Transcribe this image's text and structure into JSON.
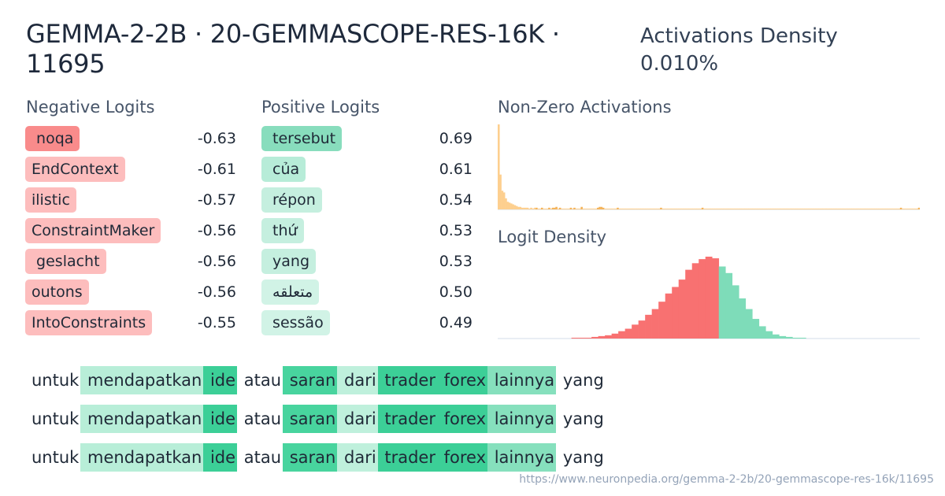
{
  "header": {
    "title": "GEMMA-2-2B · 20-GEMMASCOPE-RES-16K · 11695",
    "density_label": "Activations Density",
    "density_value": "0.010%"
  },
  "negative_logits": {
    "heading": "Negative Logits",
    "items": [
      {
        "token": " noqa",
        "value": "-0.63",
        "color": "#f98b8b"
      },
      {
        "token": "EndContext",
        "value": "-0.61",
        "color": "#fdbdbd"
      },
      {
        "token": "ilistic",
        "value": "-0.57",
        "color": "#fdbdbd"
      },
      {
        "token": "ConstraintMaker",
        "value": "-0.56",
        "color": "#fdbdbd"
      },
      {
        "token": " geslacht",
        "value": "-0.56",
        "color": "#fdbdbd"
      },
      {
        "token": "outons",
        "value": "-0.56",
        "color": "#fdbdbd"
      },
      {
        "token": "IntoConstraints",
        "value": "-0.55",
        "color": "#fdbdbd"
      }
    ]
  },
  "positive_logits": {
    "heading": "Positive Logits",
    "items": [
      {
        "token": " tersebut",
        "value": "0.69",
        "color": "#88ddbd"
      },
      {
        "token": " của",
        "value": "0.61",
        "color": "#b7ecd8"
      },
      {
        "token": " répon",
        "value": "0.54",
        "color": "#c5efdf"
      },
      {
        "token": " thứ",
        "value": "0.53",
        "color": "#c5efdf"
      },
      {
        "token": " yang",
        "value": "0.53",
        "color": "#c5efdf"
      },
      {
        "token": " متعلقه",
        "value": "0.50",
        "color": "#d1f3e6"
      },
      {
        "token": " sessão",
        "value": "0.49",
        "color": "#d1f3e6"
      }
    ]
  },
  "activations_chart": {
    "heading": "Non-Zero Activations",
    "color": "#fdcf8f",
    "accent": "#f4b45c",
    "values": [
      100,
      41,
      22,
      20,
      13,
      9,
      8,
      7,
      6,
      5,
      4,
      3,
      3,
      2,
      2,
      2,
      2,
      1,
      2,
      1,
      2,
      2,
      1,
      1,
      2,
      1,
      1,
      1,
      2,
      1,
      2,
      2,
      3,
      1,
      2,
      1,
      1,
      1,
      1,
      1,
      2,
      1,
      2,
      1,
      1,
      1,
      3,
      1,
      1,
      1,
      1,
      1,
      1,
      1,
      1,
      2,
      3,
      3,
      2,
      1,
      1,
      1,
      1,
      1,
      1,
      1,
      2,
      1,
      1,
      1,
      1,
      1,
      1,
      1,
      1,
      1,
      1,
      1,
      1,
      1,
      1,
      1,
      1,
      1,
      1,
      1,
      1,
      1,
      1,
      1,
      2,
      1,
      1,
      1,
      1,
      1,
      1,
      1,
      1,
      1,
      1,
      1,
      1,
      1,
      1,
      1,
      1,
      1,
      1,
      1,
      1,
      1,
      1,
      2,
      1,
      1,
      1,
      1,
      1,
      1,
      1,
      1,
      1,
      1,
      1,
      1,
      1,
      1,
      1,
      1,
      1,
      1,
      1,
      1,
      1,
      1,
      1,
      1,
      1,
      1,
      1,
      1,
      1,
      1,
      1,
      1,
      1,
      1,
      1,
      1,
      1,
      1,
      1,
      1,
      1,
      1,
      1,
      1,
      1,
      1,
      1,
      1,
      1,
      1,
      1,
      1,
      1,
      1,
      1,
      1,
      1,
      1,
      1,
      1,
      1,
      1,
      1,
      1,
      1,
      1,
      1,
      1,
      1,
      1,
      1,
      1,
      1,
      1,
      1,
      1,
      1,
      1,
      1,
      1,
      1,
      1,
      1,
      1,
      1,
      1,
      1,
      1,
      1,
      1,
      1,
      1,
      1,
      1,
      1,
      1,
      1,
      1,
      1,
      1,
      1,
      1,
      1,
      1,
      1,
      1,
      1,
      1,
      1,
      2,
      1,
      1,
      1,
      1,
      1,
      1,
      1,
      1,
      1,
      2
    ]
  },
  "logit_density_chart": {
    "heading": "Logit Density",
    "negative_color": "#f87171",
    "positive_color": "#7edcb9",
    "negative_values": [
      0,
      0,
      0,
      0,
      0,
      0,
      0,
      0,
      0,
      0,
      0,
      1,
      1,
      1,
      2,
      3,
      4,
      6,
      9,
      12,
      17,
      22,
      29,
      36,
      45,
      55,
      63,
      72,
      84,
      92,
      97,
      100,
      98
    ],
    "positive_values": [
      88,
      80,
      65,
      49,
      36,
      24,
      15,
      9,
      5,
      3,
      2,
      1,
      1,
      0,
      0,
      0,
      0,
      0,
      0,
      0,
      0,
      0,
      0,
      0,
      0,
      0,
      0,
      0,
      0,
      0
    ]
  },
  "snippets": [
    {
      "tokens": [
        {
          "text": "untuk",
          "bg": ""
        },
        {
          "text": " mendapatkan",
          "bg": "#b8eed8"
        },
        {
          "text": " ide",
          "bg": "#3ccf97"
        },
        {
          "text": " atau",
          "bg": ""
        },
        {
          "text": " saran",
          "bg": "#48d49e"
        },
        {
          "text": " dari",
          "bg": "#bff0dc"
        },
        {
          "text": " trader",
          "bg": "#3ccf97"
        },
        {
          "text": " forex",
          "bg": "#3ccf97"
        },
        {
          "text": " lainnya",
          "bg": "#86e0bd"
        },
        {
          "text": " yang",
          "bg": ""
        }
      ]
    },
    {
      "tokens": [
        {
          "text": "untuk",
          "bg": ""
        },
        {
          "text": " mendapatkan",
          "bg": "#b8eed8"
        },
        {
          "text": " ide",
          "bg": "#3ccf97"
        },
        {
          "text": " atau",
          "bg": ""
        },
        {
          "text": " saran",
          "bg": "#48d49e"
        },
        {
          "text": " dari",
          "bg": "#bff0dc"
        },
        {
          "text": " trader",
          "bg": "#3ccf97"
        },
        {
          "text": " forex",
          "bg": "#3ccf97"
        },
        {
          "text": " lainnya",
          "bg": "#86e0bd"
        },
        {
          "text": " yang",
          "bg": ""
        }
      ]
    },
    {
      "tokens": [
        {
          "text": "untuk",
          "bg": ""
        },
        {
          "text": " mendapatkan",
          "bg": "#b8eed8"
        },
        {
          "text": " ide",
          "bg": "#3ccf97"
        },
        {
          "text": " atau",
          "bg": ""
        },
        {
          "text": " saran",
          "bg": "#48d49e"
        },
        {
          "text": " dari",
          "bg": "#bff0dc"
        },
        {
          "text": " trader",
          "bg": "#3ccf97"
        },
        {
          "text": " forex",
          "bg": "#3ccf97"
        },
        {
          "text": " lainnya",
          "bg": "#86e0bd"
        },
        {
          "text": " yang",
          "bg": ""
        }
      ]
    }
  ],
  "footer": {
    "url": "https://www.neuronpedia.org/gemma-2-2b/20-gemmascope-res-16k/11695"
  }
}
